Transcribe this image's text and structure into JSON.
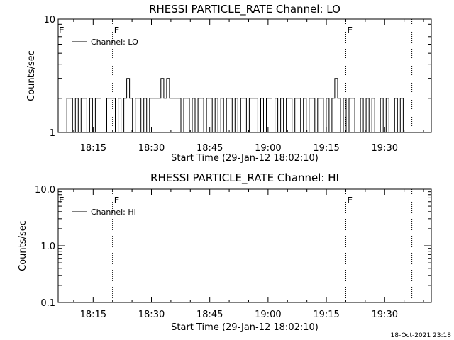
{
  "footer": {
    "timestamp": "18-Oct-2021 23:18"
  },
  "chart_data": [
    {
      "type": "line",
      "title": "RHESSI PARTICLE_RATE Channel: LO",
      "xlabel": "Start Time (29-Jan-12 18:02:10)",
      "ylabel": "Counts/sec",
      "xlim_minutes": [
        6,
        72
      ],
      "x_ticks": [
        {
          "t": 15,
          "label": "18:15"
        },
        {
          "t": 30,
          "label": "18:30"
        },
        {
          "t": 45,
          "label": "18:45"
        },
        {
          "t": 60,
          "label": "19:00"
        },
        {
          "t": 75,
          "label": "19:15"
        },
        {
          "t": 90,
          "label": "19:30"
        }
      ],
      "ylim": [
        1,
        10
      ],
      "y_scale": "log",
      "y_ticks": [
        {
          "v": 1,
          "label": "1"
        },
        {
          "v": 10,
          "label": "10"
        }
      ],
      "grid": false,
      "legend": {
        "position": "top-left",
        "entries": [
          "Channel: LO"
        ]
      },
      "event_markers": [
        {
          "t": 20,
          "label": "E"
        },
        {
          "t": 80,
          "label": "E"
        },
        {
          "t": 97,
          "label": ""
        }
      ],
      "series": [
        {
          "name": "Channel: LO",
          "step_pattern": [
            1,
            2,
            2,
            1,
            2,
            1,
            2,
            2,
            1,
            2,
            1,
            2,
            2,
            1,
            1,
            2,
            2,
            2,
            1,
            2,
            1,
            2,
            3,
            2,
            1,
            2,
            2,
            1,
            2,
            1,
            2,
            2,
            2,
            2,
            3,
            2,
            3,
            2,
            2,
            2,
            2,
            1,
            2,
            2,
            1,
            2,
            1,
            2,
            2,
            1,
            2,
            2,
            1,
            2,
            1,
            2,
            1,
            2,
            2,
            1,
            2,
            1,
            2,
            2,
            1,
            2,
            2,
            2,
            1,
            2,
            1,
            2,
            2,
            1,
            2,
            1,
            2,
            1,
            2,
            2,
            1,
            2,
            2,
            1,
            2,
            1,
            2,
            2,
            1,
            2,
            2,
            1,
            2,
            1,
            2,
            3,
            2,
            1,
            2,
            1,
            2,
            2,
            1,
            1,
            2,
            1,
            2,
            1,
            2,
            1,
            1,
            2,
            1,
            2,
            1,
            1,
            2,
            1,
            2,
            1
          ]
        }
      ]
    },
    {
      "type": "line",
      "title": "RHESSI PARTICLE_RATE Channel: HI",
      "xlabel": "Start Time (29-Jan-12 18:02:10)",
      "ylabel": "Counts/sec",
      "x_ticks": [
        {
          "t": 15,
          "label": "18:15"
        },
        {
          "t": 30,
          "label": "18:30"
        },
        {
          "t": 45,
          "label": "18:45"
        },
        {
          "t": 60,
          "label": "19:00"
        },
        {
          "t": 75,
          "label": "19:15"
        },
        {
          "t": 90,
          "label": "19:30"
        }
      ],
      "ylim": [
        0.1,
        10.0
      ],
      "y_scale": "log",
      "y_ticks": [
        {
          "v": 0.1,
          "label": "0.1"
        },
        {
          "v": 1.0,
          "label": "1.0"
        },
        {
          "v": 10.0,
          "label": "10.0"
        }
      ],
      "grid": false,
      "legend": {
        "position": "top-left",
        "entries": [
          "Channel: HI"
        ]
      },
      "event_markers": [
        {
          "t": 20,
          "label": "E"
        },
        {
          "t": 80,
          "label": "E"
        },
        {
          "t": 97,
          "label": ""
        }
      ],
      "series": [
        {
          "name": "Channel: HI",
          "values": []
        }
      ]
    }
  ]
}
